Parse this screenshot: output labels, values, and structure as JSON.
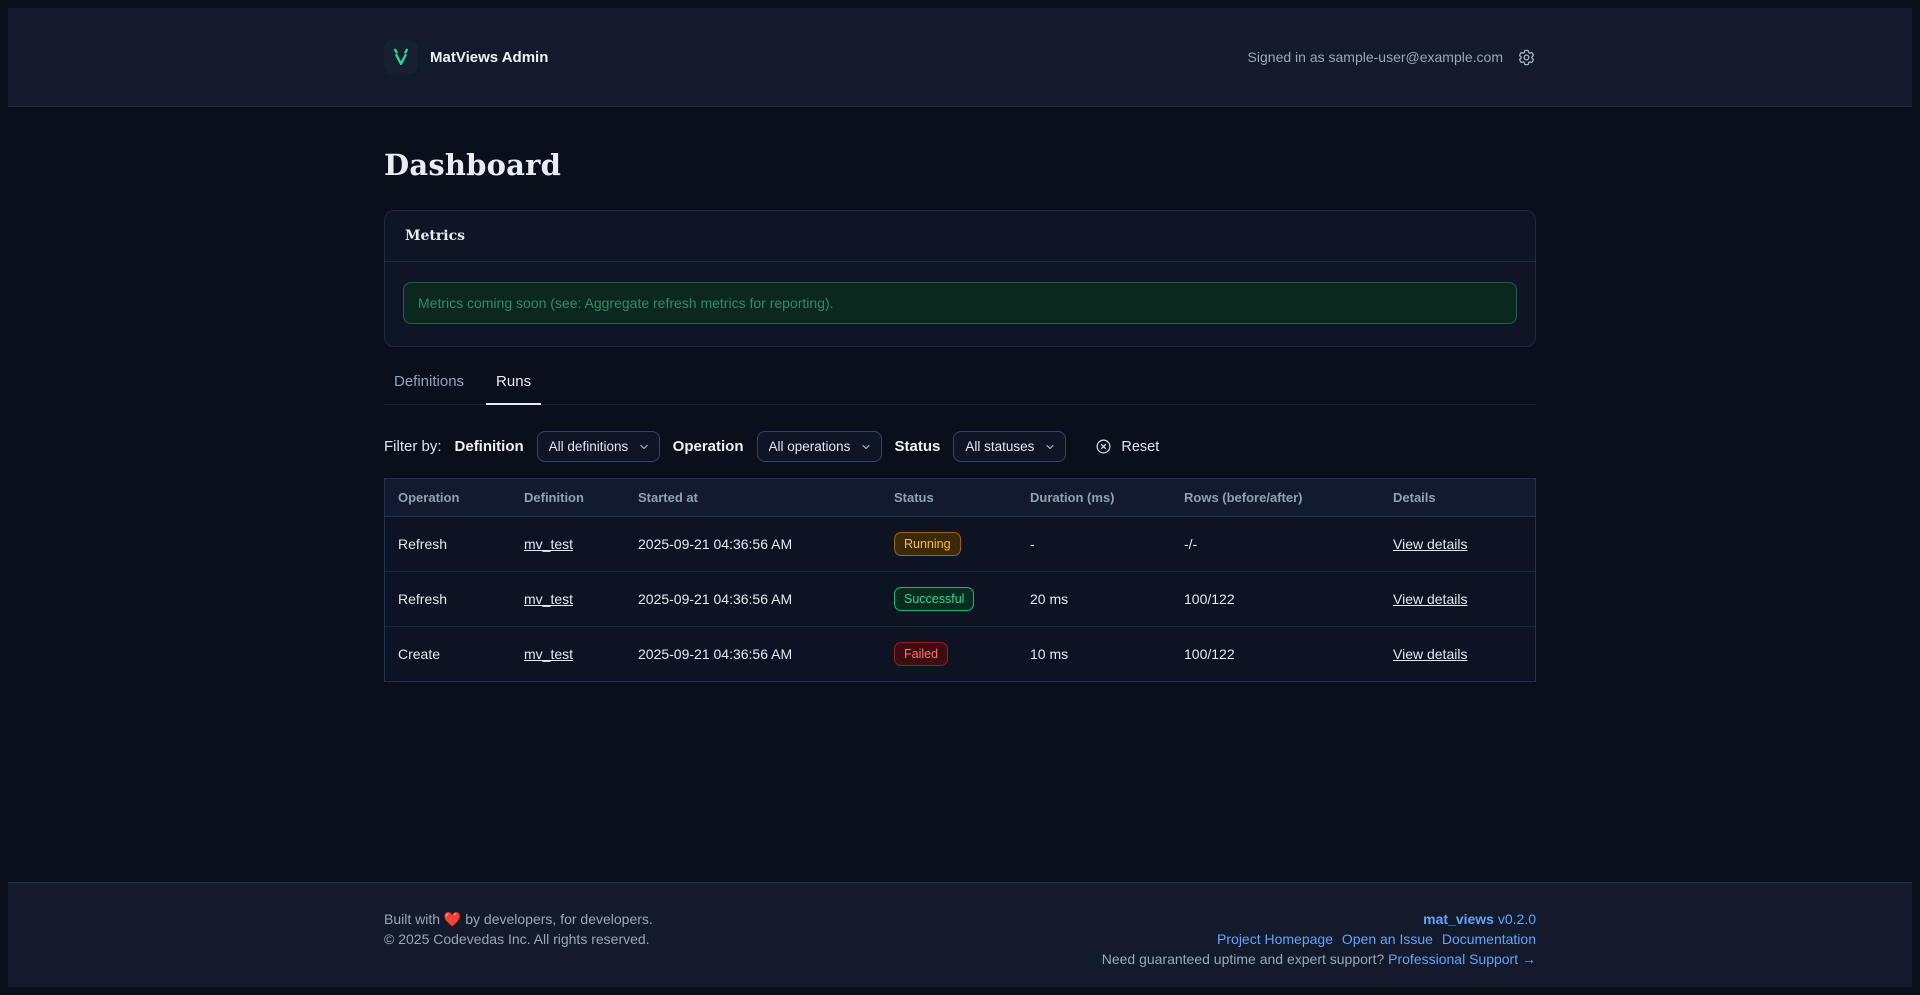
{
  "header": {
    "app_title": "MatViews Admin",
    "signed_in": "Signed in as sample-user@example.com"
  },
  "page": {
    "title": "Dashboard"
  },
  "metrics": {
    "title": "Metrics",
    "notice": "Metrics coming soon (see: Aggregate refresh metrics for reporting)."
  },
  "tabs": [
    {
      "label": "Definitions",
      "active": false
    },
    {
      "label": "Runs",
      "active": true
    }
  ],
  "filters": {
    "label": "Filter by:",
    "definition_label": "Definition",
    "definition_value": "All definitions",
    "operation_label": "Operation",
    "operation_value": "All operations",
    "status_label": "Status",
    "status_value": "All statuses",
    "reset_label": "Reset"
  },
  "table": {
    "columns": [
      "Operation",
      "Definition",
      "Started at",
      "Status",
      "Duration (ms)",
      "Rows (before/after)",
      "Details"
    ],
    "rows": [
      {
        "operation": "Refresh",
        "definition": "mv_test",
        "started_at": "2025-09-21 04:36:56 AM",
        "status": "Running",
        "duration": "-",
        "rows": "-/-",
        "details": "View details"
      },
      {
        "operation": "Refresh",
        "definition": "mv_test",
        "started_at": "2025-09-21 04:36:56 AM",
        "status": "Successful",
        "duration": "20 ms",
        "rows": "100/122",
        "details": "View details"
      },
      {
        "operation": "Create",
        "definition": "mv_test",
        "started_at": "2025-09-21 04:36:56 AM",
        "status": "Failed",
        "duration": "10 ms",
        "rows": "100/122",
        "details": "View details"
      }
    ]
  },
  "footer": {
    "built_prefix": "Built with",
    "heart": "❤️",
    "built_suffix": "by developers, for developers.",
    "copyright": "© 2025 Codevedas Inc. All rights reserved.",
    "product_name": "mat_views",
    "version": "v0.2.0",
    "links": [
      "Project Homepage",
      "Open an Issue",
      "Documentation"
    ],
    "support_text": "Need guaranteed uptime and expert support?",
    "support_link": "Professional Support →"
  },
  "colors": {
    "accent_green": "#2dd4a0",
    "link_blue": "#60a5fa",
    "status_running": "#fbbf24",
    "status_successful": "#34d399",
    "status_failed": "#f87171"
  }
}
